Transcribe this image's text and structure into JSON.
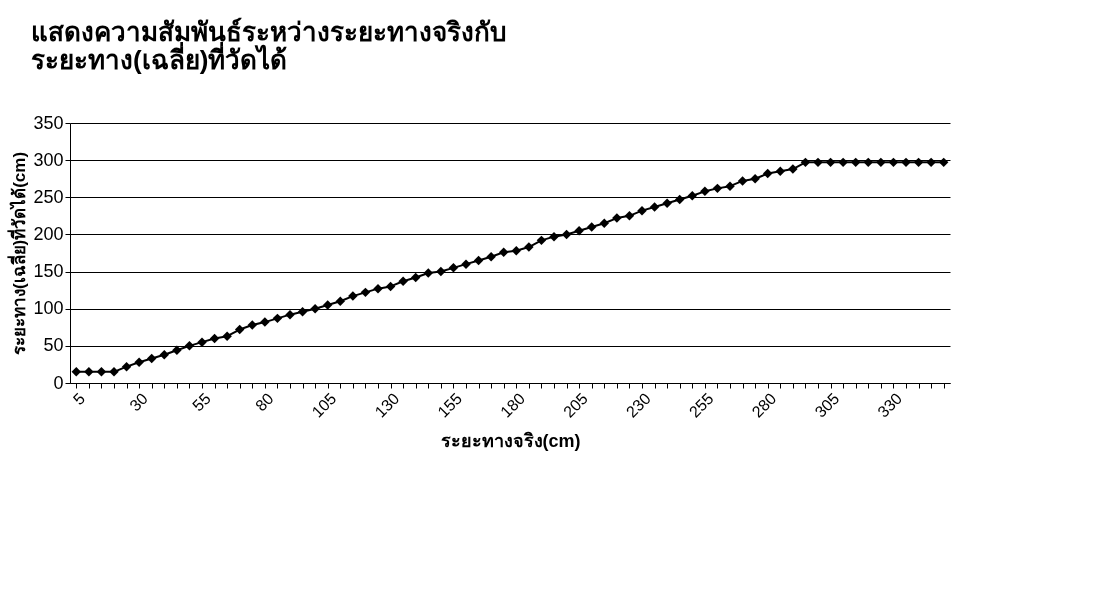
{
  "chart_data": {
    "type": "line",
    "title": "แสดงความสัมพันธ์ระหว่างระยะทางจริงกับ\nระยะทาง(เฉลี่ย)ที่วัดได้",
    "xlabel": "ระยะทางจริง(cm)",
    "ylabel": "ระยะทาง(เฉลี่ย)ที่วัดได้(cm)",
    "categories": [
      "5",
      null,
      null,
      null,
      null,
      "30",
      null,
      null,
      null,
      null,
      "55",
      null,
      null,
      null,
      null,
      "80",
      null,
      null,
      null,
      null,
      "105",
      null,
      null,
      null,
      null,
      "130",
      null,
      null,
      null,
      null,
      "155",
      null,
      null,
      null,
      null,
      "180",
      null,
      null,
      null,
      null,
      "205",
      null,
      null,
      null,
      null,
      "230",
      null,
      null,
      null,
      null,
      "255",
      null,
      null,
      null,
      null,
      "280",
      null,
      null,
      null,
      null,
      "305",
      null,
      null,
      null,
      null,
      "330",
      null,
      null,
      null,
      null
    ],
    "series": [
      {
        "color": "#000000",
        "values": [
          15,
          15,
          15,
          15,
          22,
          28,
          33,
          38,
          44,
          50,
          55,
          60,
          63,
          72,
          78,
          82,
          87,
          92,
          96,
          100,
          105,
          110,
          117,
          122,
          127,
          130,
          137,
          142,
          148,
          150,
          155,
          160,
          165,
          170,
          176,
          178,
          183,
          192,
          197,
          200,
          205,
          210,
          215,
          222,
          225,
          232,
          237,
          242,
          247,
          252,
          258,
          262,
          265,
          272,
          275,
          282,
          285,
          288,
          297,
          297,
          297,
          297,
          297,
          297,
          297,
          297,
          297,
          297,
          297,
          297
        ]
      }
    ],
    "ylim": [
      0,
      350
    ],
    "yticks": [
      0,
      50,
      100,
      150,
      200,
      250,
      300,
      350
    ],
    "grid": "y",
    "marker": "diamond",
    "line_style": "solid"
  }
}
